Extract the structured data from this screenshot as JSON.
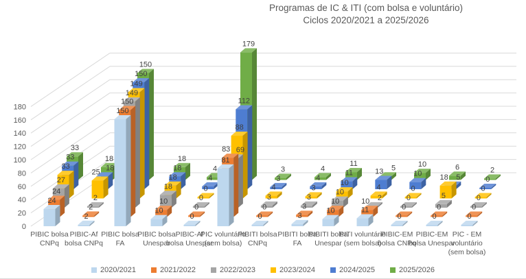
{
  "title": {
    "line1": "Programas de IC & ITI (com bolsa e voluntário)",
    "line2": "Ciclos 2020/2021 a 2025/2026"
  },
  "chart_data": {
    "type": "bar",
    "subtype": "3d-column",
    "title": "Programas de IC & ITI (com bolsa e voluntário) Ciclos 2020/2021 a 2025/2026",
    "categories": [
      "PIBIC bolsa CNPq",
      "PIBIC-Af bolsa CNPq",
      "PIBIC bolsa FA",
      "PIBIC bolsa Unespar",
      "PIBIC-Af bolsa Unespar",
      "PIC voluntário (sem bolsa)",
      "PIBITI bolsa CNPq",
      "PIBITI bolsa FA",
      "PIBITI bolsa Unespar",
      "PITI voluntário (sem bolsa)",
      "PIBIC-EM bolsa CNPq",
      "PIBIC-EM bolsa Unespar",
      "PIC - EM voluntário (sem bolsa)"
    ],
    "series": [
      {
        "name": "2020/2021",
        "color": "#BDD7EE",
        "values": [
          24,
          2,
          150,
          10,
          0,
          81,
          0,
          3,
          10,
          11,
          0,
          0,
          0
        ]
      },
      {
        "name": "2021/2022",
        "color": "#ED7D31",
        "values": [
          24,
          2,
          150,
          10,
          0,
          83,
          0,
          3,
          10,
          10,
          0,
          0,
          0
        ]
      },
      {
        "name": "2022/2023",
        "color": "#A5A5A5",
        "values": [
          27,
          2,
          149,
          18,
          0,
          69,
          3,
          3,
          10,
          2,
          0,
          5,
          0
        ]
      },
      {
        "name": "2023/2024",
        "color": "#FFC000",
        "values": [
          33,
          25,
          149,
          18,
          0,
          88,
          4,
          3,
          10,
          4,
          0,
          18,
          0
        ]
      },
      {
        "name": "2024/2025",
        "color": "#4E7DD1",
        "values": [
          33,
          18,
          150,
          18,
          4,
          112,
          3,
          4,
          11,
          13,
          10,
          5,
          0
        ]
      },
      {
        "name": "2025/2026",
        "color": "#70AD47",
        "values": [
          33,
          18,
          150,
          18,
          4,
          179,
          3,
          4,
          11,
          5,
          10,
          6,
          2
        ]
      }
    ],
    "y_axis": {
      "min": 0,
      "max": 180,
      "step": 20
    },
    "data_labels": true,
    "grid": true,
    "legend_position": "bottom",
    "style": {
      "gridline_color": "#D9D9D9",
      "axis_text_color": "#595959",
      "data_label_color": "#404040",
      "background": "#FFFFFF"
    }
  }
}
